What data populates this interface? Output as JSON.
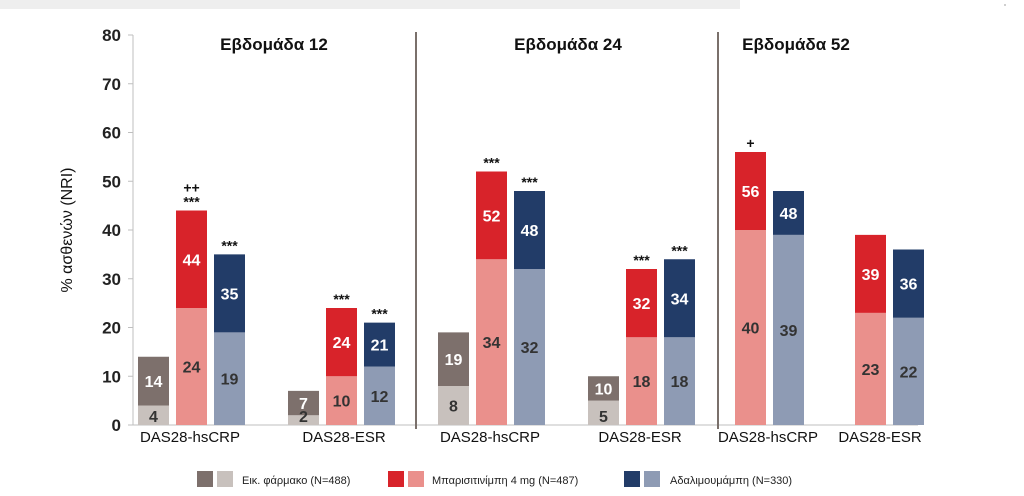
{
  "chart_data": {
    "type": "bar",
    "ylabel": "% ασθενών (NRI)",
    "ylim": [
      0,
      80
    ],
    "yticks": [
      0,
      10,
      20,
      30,
      40,
      50,
      60,
      70,
      80
    ],
    "stacked": true,
    "colors": {
      "placebo_dark": "#7d706c",
      "placebo_light": "#c8c1bd",
      "bari_dark": "#d8232a",
      "bari_light": "#ea908c",
      "ada_dark": "#223c68",
      "ada_light": "#8e9bb4"
    },
    "panels": [
      {
        "title": "Εβδομάδα 12",
        "groups": [
          {
            "category": "DAS28-hsCRP",
            "bars": [
              {
                "series": "placebo",
                "bottom": 4,
                "total": 14,
                "sig": ""
              },
              {
                "series": "bari",
                "bottom": 24,
                "total": 44,
                "sig": "***",
                "sig2": "++"
              },
              {
                "series": "ada",
                "bottom": 19,
                "total": 35,
                "sig": "***"
              }
            ]
          },
          {
            "category": "DAS28-ESR",
            "bars": [
              {
                "series": "placebo",
                "bottom": 2,
                "total": 7,
                "sig": ""
              },
              {
                "series": "bari",
                "bottom": 10,
                "total": 24,
                "sig": "***"
              },
              {
                "series": "ada",
                "bottom": 12,
                "total": 21,
                "sig": "***"
              }
            ]
          }
        ]
      },
      {
        "title": "Εβδομάδα 24",
        "groups": [
          {
            "category": "DAS28-hsCRP",
            "bars": [
              {
                "series": "placebo",
                "bottom": 8,
                "total": 19,
                "sig": ""
              },
              {
                "series": "bari",
                "bottom": 34,
                "total": 52,
                "sig": "***"
              },
              {
                "series": "ada",
                "bottom": 32,
                "total": 48,
                "sig": "***"
              }
            ]
          },
          {
            "category": "DAS28-ESR",
            "bars": [
              {
                "series": "placebo",
                "bottom": 5,
                "total": 10,
                "sig": ""
              },
              {
                "series": "bari",
                "bottom": 18,
                "total": 32,
                "sig": "***"
              },
              {
                "series": "ada",
                "bottom": 18,
                "total": 34,
                "sig": "***"
              }
            ]
          }
        ]
      },
      {
        "title": "Εβδομάδα 52",
        "groups": [
          {
            "category": "DAS28-hsCRP",
            "bars": [
              {
                "series": "bari",
                "bottom": 40,
                "total": 56,
                "sig": "+"
              },
              {
                "series": "ada",
                "bottom": 39,
                "total": 48,
                "sig": ""
              }
            ]
          },
          {
            "category": "DAS28-ESR",
            "bars": [
              {
                "series": "bari",
                "bottom": 23,
                "total": 39,
                "sig": ""
              },
              {
                "series": "ada",
                "bottom": 22,
                "total": 36,
                "sig": ""
              }
            ]
          }
        ]
      }
    ],
    "legend": [
      {
        "series": "placebo",
        "label": "Εικ. φάρμακο (N=488)"
      },
      {
        "series": "bari",
        "label": "Μπαρισιτινίμπη 4 mg (N=487)"
      },
      {
        "series": "ada",
        "label": "Αδαλιμουμάμπη (N=330)"
      }
    ]
  }
}
